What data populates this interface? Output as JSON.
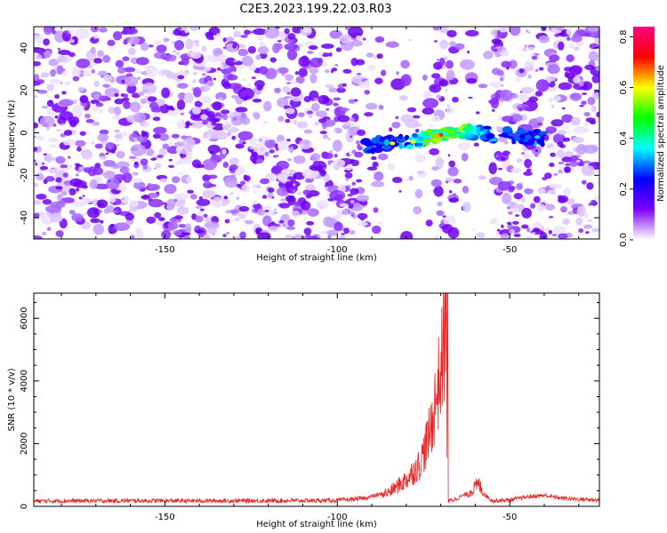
{
  "title": "C2E3.2023.199.22.03.R03",
  "chart_data": [
    {
      "type": "heatmap",
      "xlabel": "Height of straight line (km)",
      "ylabel": "Frequency (Hz)",
      "xlim": [
        -188,
        -24
      ],
      "ylim": [
        -50,
        50
      ],
      "xticks": [
        -150,
        -100,
        -50
      ],
      "yticks": [
        -40,
        -20,
        0,
        20,
        40
      ],
      "colorbar": {
        "label": "Normalized spectral amplitude",
        "range": [
          0.0,
          0.84
        ],
        "ticks": [
          0.0,
          0.2,
          0.4,
          0.6,
          0.8
        ],
        "colors": [
          "#ffffff",
          "#8000ff",
          "#0000ff",
          "#00ffff",
          "#00ff00",
          "#ffff00",
          "#ff0000",
          "#ff0080"
        ]
      },
      "feature": {
        "description_points": [
          {
            "x": -92,
            "y": -6
          },
          {
            "x": -85,
            "y": -5
          },
          {
            "x": -78,
            "y": -4
          },
          {
            "x": -72,
            "y": -1.5
          },
          {
            "x": -68,
            "y": 0
          },
          {
            "x": -62,
            "y": 1
          },
          {
            "x": -55,
            "y": -1
          },
          {
            "x": -45,
            "y": -2
          },
          {
            "x": -40,
            "y": -2.5
          }
        ],
        "peak_x": -68
      },
      "grid": false
    },
    {
      "type": "line",
      "xlabel": "Height of straight line (km)",
      "ylabel": "SNR (10 * v/v)",
      "xlim": [
        -188,
        -24
      ],
      "ylim": [
        0,
        6800
      ],
      "xticks": [
        -150,
        -100,
        -50
      ],
      "yticks": [
        0,
        2000,
        4000,
        6000
      ],
      "color": "#ee2222",
      "series": [
        {
          "x": [
            -188,
            -160,
            -140,
            -120,
            -100,
            -92,
            -85,
            -80,
            -76,
            -73,
            -71,
            -70,
            -69,
            -68.5,
            -68,
            -67.5,
            -66,
            -62,
            -59,
            -57,
            -55,
            -50,
            -45,
            -40,
            -35,
            -30,
            -24
          ],
          "y": [
            170,
            180,
            175,
            180,
            190,
            260,
            450,
            850,
            1350,
            2400,
            3700,
            4300,
            5200,
            6800,
            100,
            180,
            220,
            420,
            700,
            350,
            180,
            200,
            300,
            350,
            260,
            230,
            200
          ]
        }
      ],
      "grid": false
    }
  ]
}
